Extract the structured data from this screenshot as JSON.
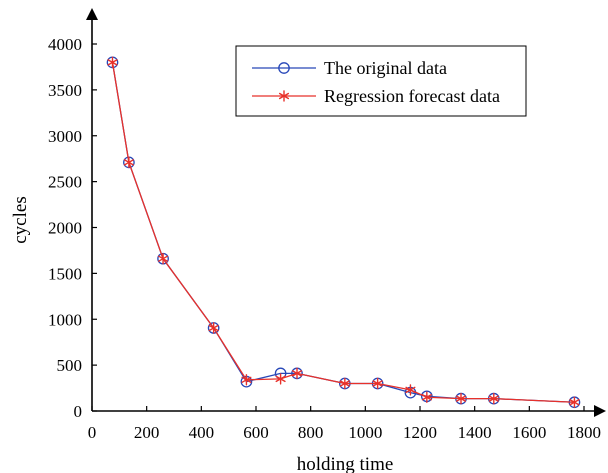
{
  "chart_data": {
    "type": "line",
    "title": "",
    "xlabel": "holding time",
    "ylabel": "cycles",
    "xlim": [
      0,
      1800
    ],
    "ylim": [
      0,
      4000
    ],
    "x_ticks": [
      0,
      200,
      400,
      600,
      800,
      1000,
      1200,
      1400,
      1600,
      1800
    ],
    "y_ticks": [
      0,
      500,
      1000,
      1500,
      2000,
      2500,
      3000,
      3500,
      4000
    ],
    "grid": false,
    "legend_position": "top-right",
    "series": [
      {
        "name": "The original data",
        "color": "#2747b8",
        "marker": "circle",
        "x": [
          75,
          135,
          260,
          445,
          565,
          690,
          750,
          925,
          1045,
          1165,
          1225,
          1350,
          1470,
          1765
        ],
        "y": [
          3800,
          2710,
          1660,
          905,
          320,
          410,
          410,
          300,
          300,
          200,
          160,
          135,
          135,
          95
        ]
      },
      {
        "name": "Regression forecast data",
        "color": "#e8312a",
        "marker": "asterisk",
        "x": [
          75,
          135,
          260,
          445,
          565,
          690,
          750,
          925,
          1045,
          1165,
          1225,
          1350,
          1470,
          1765
        ],
        "y": [
          3800,
          2710,
          1660,
          905,
          340,
          350,
          410,
          300,
          300,
          230,
          150,
          135,
          135,
          95
        ]
      }
    ]
  }
}
